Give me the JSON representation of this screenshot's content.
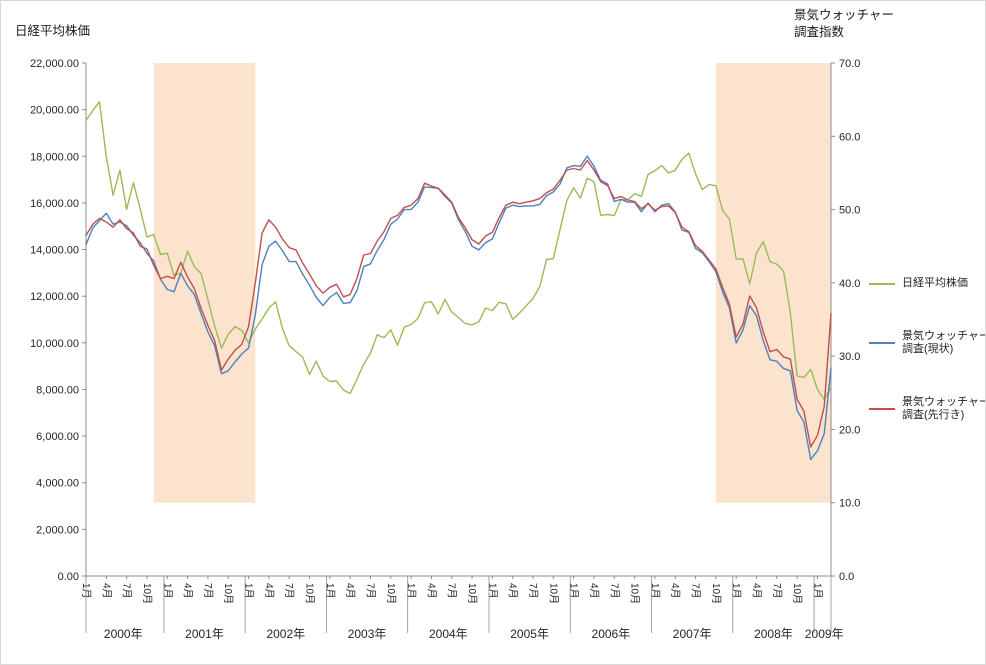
{
  "titles": {
    "left_axis_title": "日経平均株価",
    "right_axis_title_line1": "景気ウォッチャー",
    "right_axis_title_line2": "調査指数"
  },
  "legend": {
    "items": [
      {
        "id": "nikkei",
        "label": "日経平均株価",
        "color": "#9BBB59"
      },
      {
        "id": "watchers-current",
        "label": "景気ウォッチャー調査(現状)",
        "color": "#4F81BD"
      },
      {
        "id": "watchers-outlook",
        "label": "景気ウォッチャー調査(先行き)",
        "color": "#C0504D"
      }
    ]
  },
  "chart_data": {
    "type": "line",
    "left_axis": {
      "title": "日経平均株価",
      "min": 0,
      "max": 22000,
      "step": 2000,
      "tick_labels": [
        "0.00",
        "2,000.00",
        "4,000.00",
        "6,000.00",
        "8,000.00",
        "10,000.00",
        "12,000.00",
        "14,000.00",
        "16,000.00",
        "18,000.00",
        "20,000.00",
        "22,000.00"
      ]
    },
    "right_axis": {
      "title": "景気ウォッチャー調査指数",
      "min": 0,
      "max": 70,
      "step": 10,
      "tick_labels": [
        "0.0",
        "10.0",
        "20.0",
        "30.0",
        "40.0",
        "50.0",
        "60.0",
        "70.0"
      ]
    },
    "years": [
      {
        "label": "2000年",
        "months": 12
      },
      {
        "label": "2001年",
        "months": 12
      },
      {
        "label": "2002年",
        "months": 12
      },
      {
        "label": "2003年",
        "months": 12
      },
      {
        "label": "2004年",
        "months": 12
      },
      {
        "label": "2005年",
        "months": 12
      },
      {
        "label": "2006年",
        "months": 12
      },
      {
        "label": "2007年",
        "months": 12
      },
      {
        "label": "2008年",
        "months": 12
      },
      {
        "label": "2009年",
        "months": 3
      }
    ],
    "month_ticks": [
      {
        "month": 1,
        "label": "1月"
      },
      {
        "month": 4,
        "label": "4月"
      },
      {
        "month": 7,
        "label": "7月"
      },
      {
        "month": 10,
        "label": "10月"
      }
    ],
    "highlight_bands": [
      {
        "start_index": 10,
        "end_index": 25,
        "top_value": 70,
        "bottom_value": 10,
        "color": "#FBE3CE"
      },
      {
        "start_index": 93,
        "end_index": 110,
        "top_value": 70,
        "bottom_value": 10,
        "color": "#FBE3CE"
      }
    ],
    "series": [
      {
        "id": "nikkei",
        "name": "日経平均株価",
        "axis": "left",
        "color": "#9BBB59",
        "values": [
          19539,
          19959,
          20337,
          17974,
          16332,
          17411,
          15727,
          16861,
          15747,
          14540,
          14649,
          13786,
          13844,
          12884,
          12999,
          13934,
          13262,
          12969,
          11861,
          10714,
          9775,
          10366,
          10697,
          10543,
          9998,
          10588,
          11025,
          11492,
          11764,
          10622,
          9878,
          9619,
          9383,
          8640,
          9216,
          8579,
          8339,
          8363,
          7973,
          7831,
          8425,
          9083,
          9563,
          10343,
          10219,
          10559,
          9895,
          10677,
          10784,
          11041,
          11715,
          11762,
          11236,
          11859,
          11326,
          11082,
          10824,
          10771,
          10899,
          11489,
          11388,
          11740,
          11669,
          11009,
          11277,
          11584,
          11900,
          12414,
          13574,
          13607,
          14872,
          16111,
          16649,
          16205,
          17060,
          16906,
          15467,
          15505,
          15457,
          16141,
          16128,
          16399,
          16274,
          17226,
          17383,
          17604,
          17288,
          17400,
          17876,
          18138,
          17249,
          16569,
          16786,
          16738,
          15681,
          15308,
          13592,
          13603,
          12526,
          13850,
          14339,
          13481,
          13377,
          13073,
          11260,
          8577,
          8512,
          8860,
          7994,
          7568,
          8110
        ]
      },
      {
        "id": "watchers-current",
        "name": "景気ウォッチャー調査(現状)",
        "axis": "right",
        "color": "#4F81BD",
        "values": [
          45.2,
          47.5,
          48.5,
          49.5,
          48.0,
          48.3,
          47.8,
          46.5,
          45.5,
          44.0,
          43.0,
          40.5,
          39.1,
          38.8,
          41.3,
          39.6,
          38.4,
          35.8,
          33.3,
          31.4,
          27.6,
          28.0,
          29.2,
          30.3,
          31.1,
          35.6,
          42.5,
          45.0,
          45.7,
          44.4,
          42.9,
          42.9,
          41.2,
          39.7,
          38.0,
          36.9,
          38.0,
          38.7,
          37.2,
          37.3,
          38.9,
          42.2,
          42.6,
          44.4,
          45.9,
          48.0,
          48.7,
          50.0,
          50.0,
          51.0,
          53.1,
          53.0,
          52.9,
          51.8,
          50.9,
          48.6,
          47.0,
          45.0,
          44.5,
          45.5,
          46.0,
          48.2,
          50.2,
          50.6,
          50.4,
          50.5,
          50.5,
          50.7,
          51.9,
          52.4,
          53.5,
          55.7,
          56.0,
          55.9,
          57.3,
          55.9,
          54.0,
          53.5,
          51.1,
          51.4,
          51.0,
          51.0,
          49.7,
          50.9,
          49.7,
          50.6,
          50.8,
          49.7,
          47.2,
          46.9,
          44.7,
          44.1,
          42.9,
          41.5,
          38.8,
          36.6,
          31.8,
          33.6,
          36.9,
          35.5,
          32.1,
          29.5,
          29.3,
          28.3,
          28.0,
          22.6,
          21.0,
          15.9,
          17.1,
          19.4,
          28.4
        ]
      },
      {
        "id": "watchers-outlook",
        "name": "景気ウォッチャー調査(先行き)",
        "axis": "right",
        "color": "#C0504D",
        "values": [
          46.5,
          48.0,
          48.8,
          48.3,
          47.6,
          48.6,
          47.4,
          46.8,
          45.0,
          44.6,
          42.4,
          40.6,
          40.9,
          40.6,
          42.8,
          40.8,
          39.2,
          36.5,
          34.2,
          32.1,
          28.1,
          29.6,
          30.8,
          31.6,
          34.0,
          40.0,
          46.8,
          48.6,
          47.6,
          46.0,
          44.8,
          44.5,
          42.7,
          41.2,
          39.6,
          38.6,
          39.4,
          39.8,
          38.1,
          38.4,
          40.6,
          43.8,
          44.0,
          45.7,
          47.0,
          48.8,
          49.2,
          50.3,
          50.6,
          51.5,
          53.6,
          53.2,
          52.9,
          52.0,
          51.0,
          48.9,
          47.5,
          45.9,
          45.3,
          46.4,
          46.9,
          48.9,
          50.6,
          51.0,
          50.8,
          51.0,
          51.2,
          51.5,
          52.3,
          52.8,
          54.0,
          55.4,
          55.6,
          55.4,
          56.7,
          55.4,
          53.8,
          53.3,
          51.5,
          51.8,
          51.3,
          51.1,
          50.1,
          50.8,
          49.9,
          50.4,
          50.5,
          49.6,
          47.6,
          47.0,
          45.1,
          44.3,
          43.1,
          41.9,
          39.4,
          37.1,
          32.6,
          34.4,
          38.2,
          36.6,
          33.3,
          30.6,
          30.9,
          29.9,
          29.6,
          24.1,
          22.5,
          17.6,
          19.2,
          23.1,
          35.8
        ]
      }
    ]
  }
}
